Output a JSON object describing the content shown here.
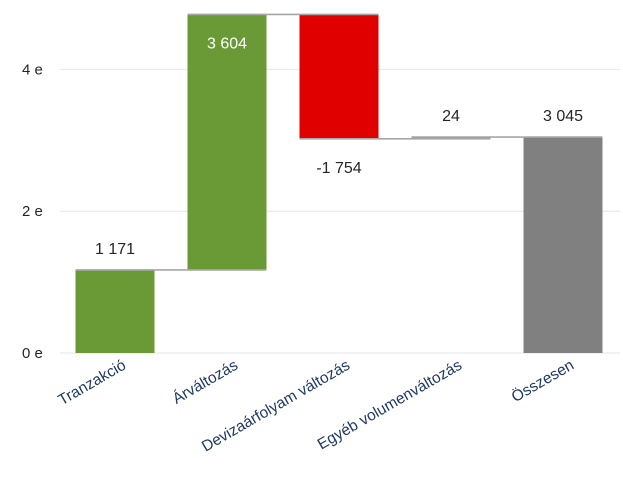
{
  "chart_data": {
    "type": "bar",
    "subtype": "waterfall",
    "categories": [
      "Tranzakció",
      "Árváltozás",
      "Devizaárfolyam változás",
      "Egyéb volumenváltozás",
      "Összesen"
    ],
    "values": [
      1171,
      3604,
      -1754,
      24,
      3045
    ],
    "value_labels": [
      "1 171",
      "3 604",
      "-1 754",
      "24",
      "3 045"
    ],
    "bar_kinds": [
      "increase",
      "increase",
      "decrease",
      "increase",
      "total"
    ],
    "colors": {
      "increase": "#6a9a35",
      "decrease": "#e00000",
      "total": "#808080",
      "connector": "#a6a6a6",
      "grid": "#e6e6e6"
    },
    "y_ticks": [
      {
        "value": 0,
        "label": "0 e"
      },
      {
        "value": 2000,
        "label": "2 e"
      },
      {
        "value": 4000,
        "label": "4 e"
      }
    ],
    "ylim": [
      0,
      5000
    ],
    "grid": true,
    "legend": false,
    "title": "",
    "xlabel": "",
    "ylabel": ""
  }
}
